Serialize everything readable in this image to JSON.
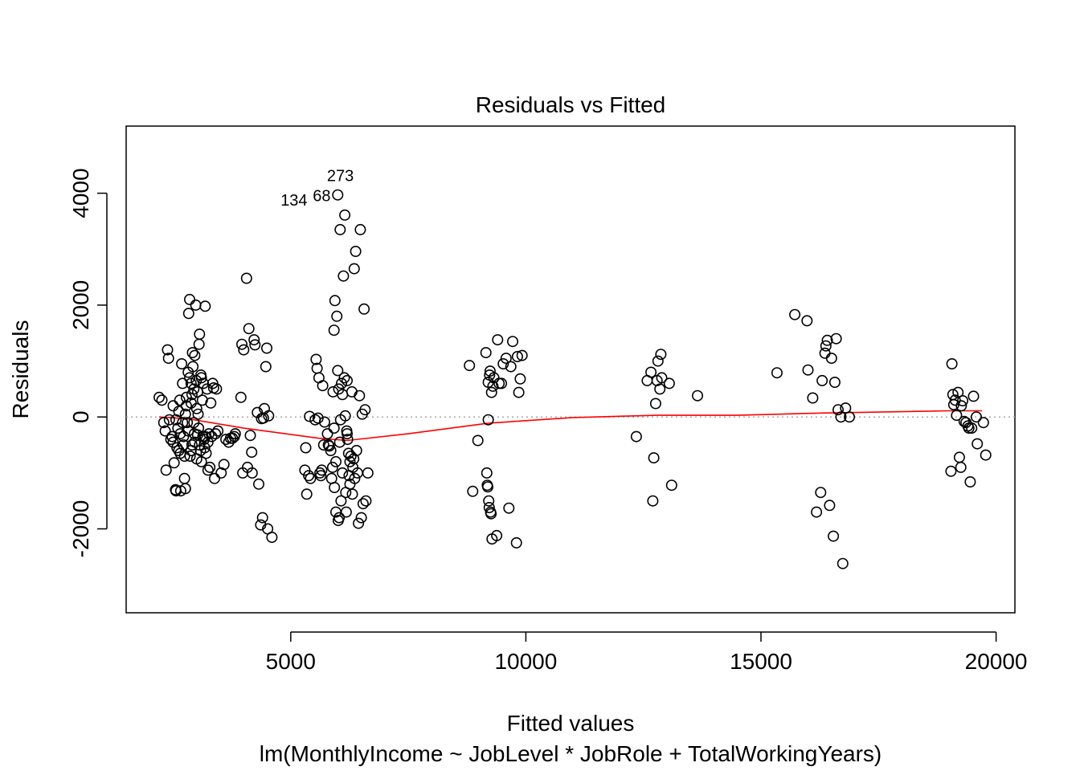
{
  "chart_data": {
    "type": "scatter",
    "title": "Residuals vs Fitted",
    "xlabel": "Fitted values",
    "subtitle": "lm(MonthlyIncome ~ JobLevel * JobRole + TotalWorkingYears)",
    "ylabel": "Residuals",
    "xlim": [
      1500,
      20400
    ],
    "ylim": [
      -3500,
      5200
    ],
    "x_ticks": [
      5000,
      10000,
      15000,
      20000
    ],
    "y_ticks": [
      -2000,
      0,
      2000,
      4000
    ],
    "x_tick_labels": [
      "5000",
      "10000",
      "15000",
      "20000"
    ],
    "y_tick_labels": [
      "-2000",
      "0",
      "2000",
      "4000"
    ],
    "grid": false,
    "reference_line": 0,
    "point_labels": [
      {
        "text": "273",
        "x": 5600,
        "y": 4330
      },
      {
        "text": "134",
        "x": 5400,
        "y": 3950
      },
      {
        "text": "68",
        "x": 5640,
        "y": 4000
      }
    ],
    "smooth_line": [
      [
        2200,
        0
      ],
      [
        2800,
        -30
      ],
      [
        4000,
        -200
      ],
      [
        5600,
        -380
      ],
      [
        6200,
        -420
      ],
      [
        7500,
        -300
      ],
      [
        9200,
        -110
      ],
      [
        11000,
        -10
      ],
      [
        12800,
        30
      ],
      [
        14500,
        30
      ],
      [
        16300,
        70
      ],
      [
        19000,
        110
      ],
      [
        19700,
        110
      ]
    ],
    "points": [
      [
        2200,
        350
      ],
      [
        2260,
        300
      ],
      [
        2300,
        -100
      ],
      [
        2330,
        -250
      ],
      [
        2350,
        -950
      ],
      [
        2380,
        1200
      ],
      [
        2400,
        1050
      ],
      [
        2420,
        -50
      ],
      [
        2450,
        -400
      ],
      [
        2480,
        -350
      ],
      [
        2500,
        -450
      ],
      [
        2520,
        -820
      ],
      [
        2550,
        -1300
      ],
      [
        2560,
        -1320
      ],
      [
        2580,
        -550
      ],
      [
        2600,
        -200
      ],
      [
        2620,
        100
      ],
      [
        2640,
        300
      ],
      [
        2650,
        -650
      ],
      [
        2660,
        -1320
      ],
      [
        2680,
        950
      ],
      [
        2700,
        600
      ],
      [
        2720,
        -350
      ],
      [
        2740,
        -1100
      ],
      [
        2760,
        -1280
      ],
      [
        2780,
        350
      ],
      [
        2800,
        -100
      ],
      [
        2820,
        800
      ],
      [
        2830,
        1850
      ],
      [
        2850,
        2100
      ],
      [
        2860,
        -700
      ],
      [
        2880,
        250
      ],
      [
        2900,
        -500
      ],
      [
        2910,
        1150
      ],
      [
        2920,
        900
      ],
      [
        2940,
        500
      ],
      [
        2950,
        -300
      ],
      [
        2960,
        1100
      ],
      [
        2980,
        2000
      ],
      [
        2990,
        650
      ],
      [
        3000,
        -750
      ],
      [
        3020,
        450
      ],
      [
        3030,
        50
      ],
      [
        3040,
        -200
      ],
      [
        3050,
        1300
      ],
      [
        3060,
        1480
      ],
      [
        3080,
        -600
      ],
      [
        3090,
        750
      ],
      [
        3100,
        -800
      ],
      [
        3120,
        300
      ],
      [
        3130,
        -350
      ],
      [
        3140,
        600
      ],
      [
        3160,
        -400
      ],
      [
        3170,
        -550
      ],
      [
        3180,
        1980
      ],
      [
        3200,
        -650
      ],
      [
        3220,
        500
      ],
      [
        3240,
        -450
      ],
      [
        3260,
        -300
      ],
      [
        3280,
        -900
      ],
      [
        3300,
        250
      ],
      [
        3320,
        -350
      ],
      [
        3340,
        600
      ],
      [
        3360,
        520
      ],
      [
        3380,
        -1100
      ],
      [
        3400,
        -300
      ],
      [
        3420,
        500
      ],
      [
        3450,
        -250
      ],
      [
        2720,
        -500
      ],
      [
        2740,
        -700
      ],
      [
        2820,
        -250
      ],
      [
        2850,
        700
      ],
      [
        2880,
        -600
      ],
      [
        2900,
        400
      ],
      [
        2960,
        -450
      ],
      [
        3000,
        150
      ],
      [
        3060,
        -500
      ],
      [
        3100,
        700
      ],
      [
        3180,
        -350
      ],
      [
        3240,
        -950
      ],
      [
        2880,
        600
      ],
      [
        2940,
        -100
      ],
      [
        3020,
        -320
      ],
      [
        2780,
        200
      ],
      [
        2650,
        -300
      ],
      [
        2620,
        -600
      ],
      [
        2700,
        -100
      ],
      [
        2560,
        -50
      ],
      [
        2500,
        200
      ],
      [
        2760,
        50
      ],
      [
        3520,
        -1000
      ],
      [
        3580,
        -850
      ],
      [
        3620,
        -400
      ],
      [
        3680,
        -450
      ],
      [
        3720,
        -380
      ],
      [
        3760,
        -380
      ],
      [
        3800,
        -350
      ],
      [
        3820,
        -300
      ],
      [
        3940,
        350
      ],
      [
        3960,
        1300
      ],
      [
        3980,
        -1000
      ],
      [
        4000,
        1200
      ],
      [
        4060,
        2480
      ],
      [
        4080,
        -900
      ],
      [
        4110,
        1580
      ],
      [
        4140,
        -330
      ],
      [
        4170,
        -630
      ],
      [
        4180,
        -1000
      ],
      [
        4220,
        1380
      ],
      [
        4240,
        1290
      ],
      [
        4290,
        80
      ],
      [
        4320,
        -1200
      ],
      [
        4360,
        -1930
      ],
      [
        4380,
        -30
      ],
      [
        4400,
        -1800
      ],
      [
        4420,
        -20
      ],
      [
        4440,
        150
      ],
      [
        4470,
        900
      ],
      [
        4490,
        1230
      ],
      [
        4510,
        -2000
      ],
      [
        4530,
        20
      ],
      [
        4600,
        -2150
      ],
      [
        5300,
        -950
      ],
      [
        5320,
        -550
      ],
      [
        5340,
        -1380
      ],
      [
        5380,
        -1050
      ],
      [
        5400,
        10
      ],
      [
        5420,
        -1100
      ],
      [
        5520,
        -50
      ],
      [
        5540,
        1030
      ],
      [
        5560,
        870
      ],
      [
        5580,
        -20
      ],
      [
        5600,
        700
      ],
      [
        5620,
        -1000
      ],
      [
        5640,
        -1050
      ],
      [
        5660,
        -950
      ],
      [
        5680,
        560
      ],
      [
        5700,
        -500
      ],
      [
        5720,
        -90
      ],
      [
        5780,
        -300
      ],
      [
        5800,
        -500
      ],
      [
        5820,
        -520
      ],
      [
        5850,
        -600
      ],
      [
        5870,
        -1100
      ],
      [
        5890,
        -900
      ],
      [
        5900,
        450
      ],
      [
        5920,
        1550
      ],
      [
        5930,
        -1260
      ],
      [
        5940,
        2080
      ],
      [
        5960,
        -1700
      ],
      [
        5980,
        1800
      ],
      [
        6000,
        830
      ],
      [
        6010,
        -1850
      ],
      [
        6020,
        500
      ],
      [
        6030,
        -1800
      ],
      [
        6050,
        3350
      ],
      [
        6060,
        -50
      ],
      [
        6070,
        -1500
      ],
      [
        6080,
        600
      ],
      [
        6100,
        -1000
      ],
      [
        6120,
        2520
      ],
      [
        6140,
        700
      ],
      [
        6150,
        3610
      ],
      [
        6160,
        20
      ],
      [
        6170,
        -1350
      ],
      [
        6180,
        -1700
      ],
      [
        6190,
        -250
      ],
      [
        6200,
        -300
      ],
      [
        6210,
        -400
      ],
      [
        6230,
        -650
      ],
      [
        6240,
        -1050
      ],
      [
        6260,
        -1200
      ],
      [
        6280,
        -700
      ],
      [
        6300,
        450
      ],
      [
        6310,
        -1380
      ],
      [
        6320,
        -900
      ],
      [
        6340,
        -750
      ],
      [
        6350,
        2650
      ],
      [
        6360,
        -1100
      ],
      [
        6380,
        2960
      ],
      [
        6400,
        -600
      ],
      [
        6420,
        -1000
      ],
      [
        6440,
        -1900
      ],
      [
        6460,
        380
      ],
      [
        6480,
        3350
      ],
      [
        6500,
        -1800
      ],
      [
        6520,
        50
      ],
      [
        6540,
        -1550
      ],
      [
        6560,
        1930
      ],
      [
        6580,
        130
      ],
      [
        6600,
        -1500
      ],
      [
        6640,
        -1000
      ],
      [
        6000,
        3970
      ],
      [
        5920,
        -200
      ],
      [
        6100,
        400
      ],
      [
        6040,
        -450
      ],
      [
        5960,
        -800
      ],
      [
        6200,
        650
      ],
      [
        6260,
        -800
      ],
      [
        8800,
        920
      ],
      [
        8870,
        -1330
      ],
      [
        8980,
        -420
      ],
      [
        9150,
        1150
      ],
      [
        9170,
        -1000
      ],
      [
        9180,
        -1220
      ],
      [
        9190,
        -1250
      ],
      [
        9200,
        -50
      ],
      [
        9200,
        620
      ],
      [
        9210,
        -1500
      ],
      [
        9220,
        -1620
      ],
      [
        9230,
        750
      ],
      [
        9240,
        820
      ],
      [
        9250,
        -1700
      ],
      [
        9260,
        -1730
      ],
      [
        9270,
        440
      ],
      [
        9280,
        -2180
      ],
      [
        9300,
        550
      ],
      [
        9320,
        700
      ],
      [
        9380,
        -2120
      ],
      [
        9400,
        1380
      ],
      [
        9430,
        600
      ],
      [
        9480,
        600
      ],
      [
        9520,
        950
      ],
      [
        9580,
        1050
      ],
      [
        9640,
        -1630
      ],
      [
        9680,
        900
      ],
      [
        9720,
        1350
      ],
      [
        9800,
        -2250
      ],
      [
        9820,
        1080
      ],
      [
        9850,
        440
      ],
      [
        9880,
        680
      ],
      [
        9920,
        1100
      ],
      [
        12350,
        -350
      ],
      [
        12580,
        650
      ],
      [
        12660,
        800
      ],
      [
        12700,
        -1500
      ],
      [
        12720,
        -730
      ],
      [
        12760,
        240
      ],
      [
        12790,
        650
      ],
      [
        12810,
        1000
      ],
      [
        12850,
        500
      ],
      [
        12870,
        1120
      ],
      [
        12890,
        700
      ],
      [
        13050,
        600
      ],
      [
        13100,
        -1220
      ],
      [
        13650,
        380
      ],
      [
        15340,
        790
      ],
      [
        15720,
        1830
      ],
      [
        15980,
        1720
      ],
      [
        16000,
        840
      ],
      [
        16100,
        340
      ],
      [
        16180,
        -1700
      ],
      [
        16270,
        -1350
      ],
      [
        16300,
        650
      ],
      [
        16360,
        1140
      ],
      [
        16380,
        1270
      ],
      [
        16410,
        1370
      ],
      [
        16460,
        -1580
      ],
      [
        16500,
        1050
      ],
      [
        16540,
        -2130
      ],
      [
        16570,
        620
      ],
      [
        16600,
        1400
      ],
      [
        16640,
        130
      ],
      [
        16700,
        0
      ],
      [
        16740,
        -2620
      ],
      [
        16800,
        160
      ],
      [
        16880,
        0
      ],
      [
        19040,
        -970
      ],
      [
        19060,
        950
      ],
      [
        19080,
        400
      ],
      [
        19100,
        220
      ],
      [
        19130,
        300
      ],
      [
        19160,
        30
      ],
      [
        19190,
        440
      ],
      [
        19220,
        -720
      ],
      [
        19250,
        -900
      ],
      [
        19260,
        200
      ],
      [
        19290,
        290
      ],
      [
        19320,
        -80
      ],
      [
        19360,
        -100
      ],
      [
        19400,
        -160
      ],
      [
        19420,
        -200
      ],
      [
        19450,
        -1160
      ],
      [
        19480,
        -200
      ],
      [
        19520,
        370
      ],
      [
        19580,
        0
      ],
      [
        19600,
        -480
      ],
      [
        19730,
        -100
      ],
      [
        19780,
        -680
      ]
    ]
  }
}
